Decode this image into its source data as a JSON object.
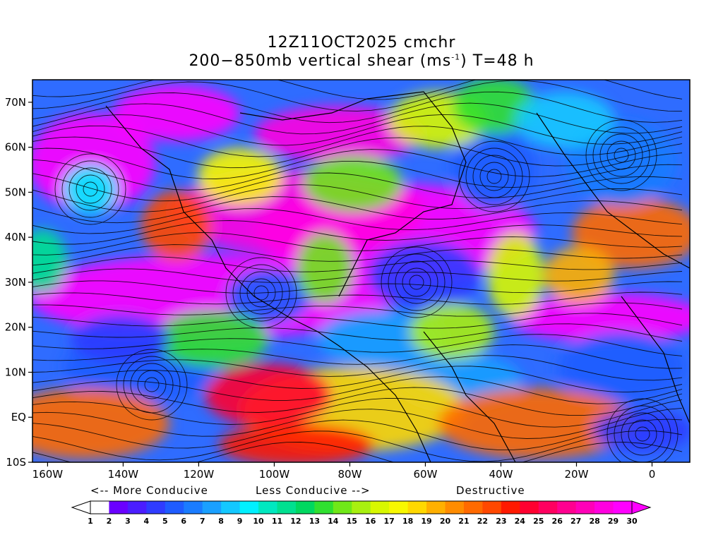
{
  "title": {
    "line1": "12Z11OCT2025 cmchr",
    "line2": "200−850mb vertical shear (ms",
    "line2_sup": "-1",
    "line2_end": ") T=48 h"
  },
  "map": {
    "lat_labels": [
      "70N",
      "60N",
      "50N",
      "40N",
      "30N",
      "20N",
      "10N",
      "EQ",
      "10S"
    ],
    "lon_labels": [
      "160W",
      "140W",
      "120W",
      "100W",
      "80W",
      "60W",
      "40W",
      "20W",
      "0"
    ],
    "projection": "lat-lon",
    "field": "vertical wind shear magnitude with streamlines"
  },
  "legend": {
    "more_conducive": "<-- More Conducive",
    "less_conducive": "Less Conducive -->",
    "destructive": "Destructive",
    "ticks": [
      "1",
      "2",
      "3",
      "4",
      "5",
      "6",
      "7",
      "8",
      "9",
      "10",
      "11",
      "12",
      "13",
      "14",
      "15",
      "16",
      "17",
      "18",
      "19",
      "20",
      "21",
      "22",
      "23",
      "24",
      "25",
      "26",
      "27",
      "28",
      "29",
      "30"
    ],
    "colors": [
      "#ffffff",
      "#6a00ff",
      "#4b1dff",
      "#2f3cff",
      "#1f5cff",
      "#1a7cff",
      "#1aa0ff",
      "#14c8ff",
      "#00f0ff",
      "#00e8c0",
      "#00e090",
      "#00d860",
      "#30e030",
      "#70e818",
      "#a8f010",
      "#d8f800",
      "#f8f800",
      "#ffd800",
      "#ffb000",
      "#ff8c00",
      "#ff6a00",
      "#ff4800",
      "#ff1a00",
      "#ff0030",
      "#ff0060",
      "#ff0090",
      "#ff00b8",
      "#ff00e0",
      "#ff00ff"
    ],
    "under_color": "#ffffff",
    "over_color": "#ff00ff"
  }
}
